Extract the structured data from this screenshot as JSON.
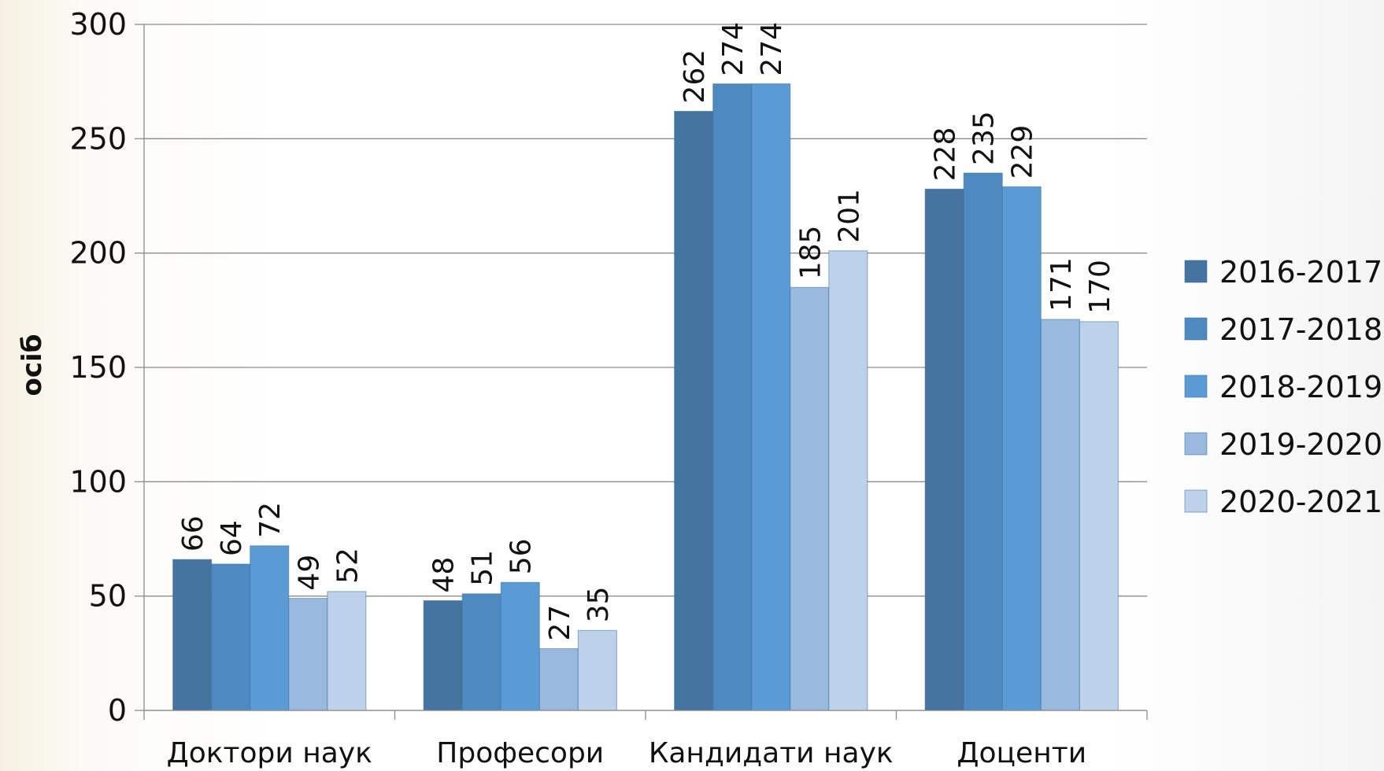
{
  "chart_data": {
    "type": "bar",
    "title": "",
    "xlabel": "",
    "ylabel": "осіб",
    "ylim": [
      0,
      300
    ],
    "yticks": [
      0,
      50,
      100,
      150,
      200,
      250,
      300
    ],
    "grid": true,
    "legend_position": "right",
    "categories": [
      "Доктори наук",
      "Професори",
      "Кандидати наук",
      "Доценти"
    ],
    "series": [
      {
        "name": "2016-2017",
        "color": "#44749f",
        "values": [
          66,
          48,
          262,
          228
        ]
      },
      {
        "name": "2017-2018",
        "color": "#4e89bf",
        "values": [
          64,
          51,
          274,
          235
        ]
      },
      {
        "name": "2018-2019",
        "color": "#5b9bd5",
        "values": [
          72,
          56,
          274,
          229
        ]
      },
      {
        "name": "2019-2020",
        "color": "#9ab9df",
        "values": [
          49,
          27,
          185,
          171
        ]
      },
      {
        "name": "2020-2021",
        "color": "#bdd1ea",
        "values": [
          52,
          35,
          201,
          170
        ]
      }
    ]
  }
}
